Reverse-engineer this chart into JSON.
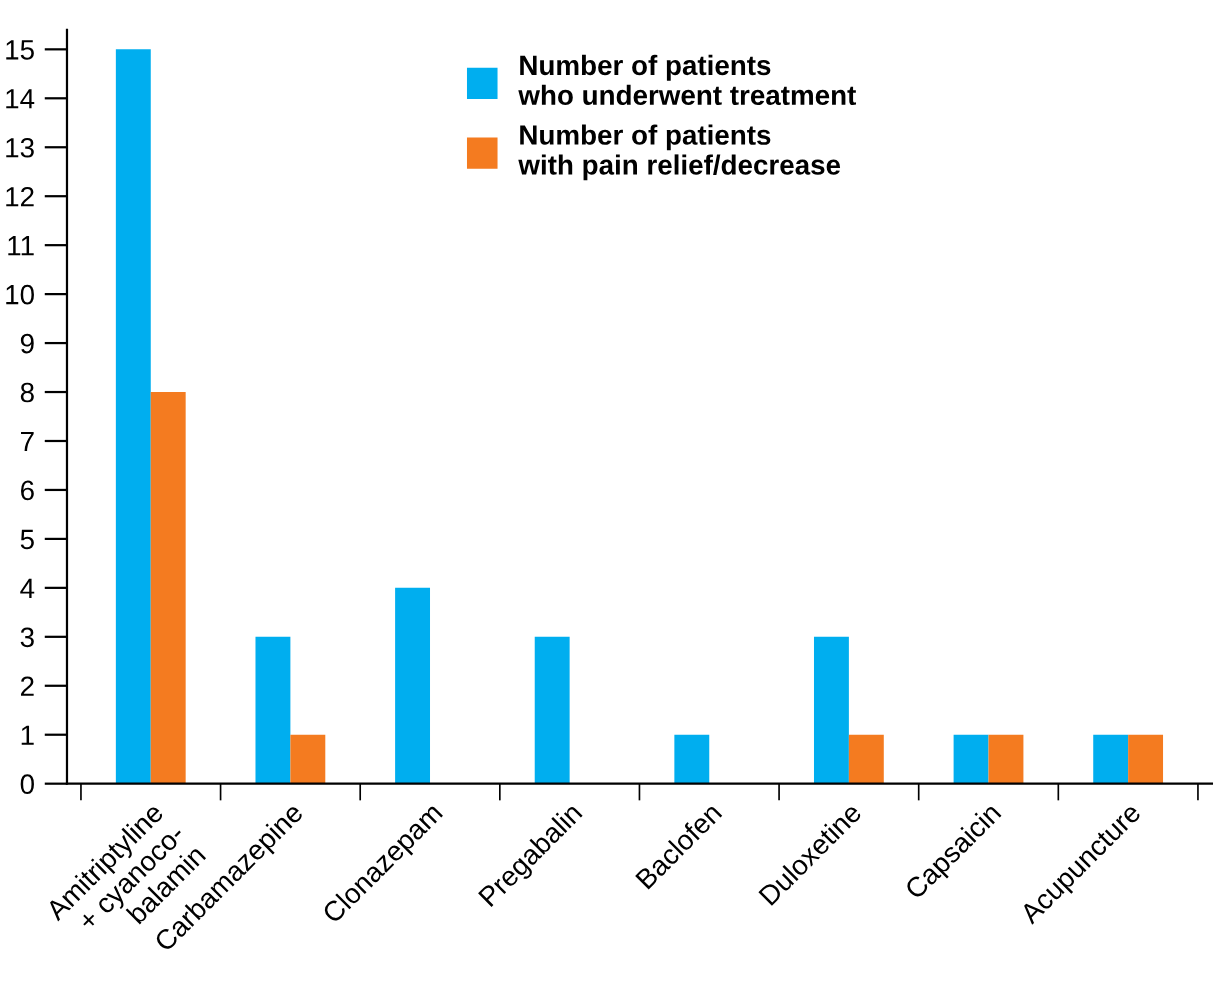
{
  "chart_data": {
    "type": "bar",
    "categories": [
      "Amitriptyline\n+ cyanoco-\nbalamin",
      "Carbamazepine",
      "Clonazepam",
      "Pregabalin",
      "Baclofen",
      "Duloxetine",
      "Capsaicin",
      "Acupuncture"
    ],
    "series": [
      {
        "name": "Number of patients\nwho underwent treatment",
        "color": "#00aeef",
        "values": [
          15,
          3,
          4,
          3,
          1,
          3,
          1,
          1
        ]
      },
      {
        "name": "Number of patients\nwith pain relief/decrease",
        "color": "#f47b20",
        "values": [
          8,
          1,
          0,
          0,
          0,
          1,
          1,
          1
        ]
      }
    ],
    "ylim": [
      0,
      15.4
    ],
    "yticks": [
      0,
      1,
      2,
      3,
      4,
      5,
      6,
      7,
      8,
      9,
      10,
      11,
      12,
      13,
      14,
      15
    ],
    "grid": false,
    "legend": "top"
  }
}
